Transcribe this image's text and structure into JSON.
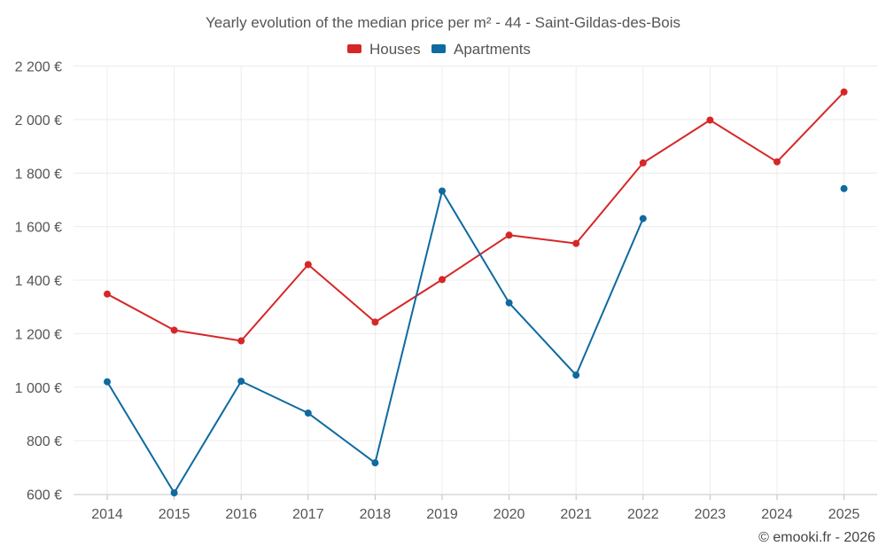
{
  "chart_data": {
    "type": "line",
    "title": "Yearly evolution of the median price per m² - 44 - Saint-Gildas-des-Bois",
    "categories": [
      "2014",
      "2015",
      "2016",
      "2017",
      "2018",
      "2019",
      "2020",
      "2021",
      "2022",
      "2023",
      "2024",
      "2025"
    ],
    "series": [
      {
        "name": "Houses",
        "color": "#d62728",
        "values": [
          1348,
          1213,
          1173,
          1458,
          1243,
          1402,
          1568,
          1537,
          1838,
          1998,
          1842,
          2103
        ]
      },
      {
        "name": "Apartments",
        "color": "#0e6aa0",
        "values": [
          1020,
          605,
          1022,
          903,
          717,
          1733,
          1315,
          1045,
          1630,
          null,
          null,
          1742
        ]
      }
    ],
    "ylim": [
      600,
      2200
    ],
    "yticks": [
      600,
      800,
      1000,
      1200,
      1400,
      1600,
      1800,
      2000,
      2200
    ],
    "ytick_labels": [
      "600 €",
      "800 €",
      "1 000 €",
      "1 200 €",
      "1 400 €",
      "1 600 €",
      "1 800 €",
      "2 000 €",
      "2 200 €"
    ],
    "xlabel": "",
    "ylabel": "",
    "legend_position": "top-center",
    "grid": true
  },
  "credit": "© emooki.fr - 2026"
}
